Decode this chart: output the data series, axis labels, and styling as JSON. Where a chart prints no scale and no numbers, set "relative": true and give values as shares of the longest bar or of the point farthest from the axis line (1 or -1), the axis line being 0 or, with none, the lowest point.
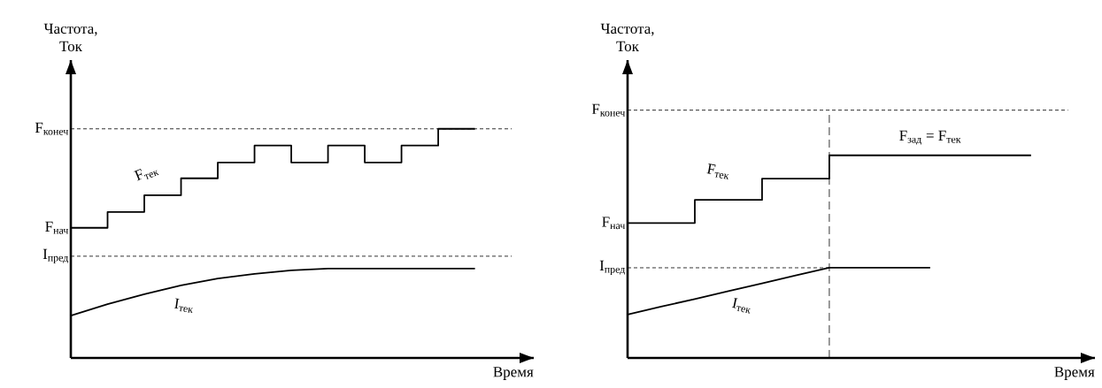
{
  "chart_data": [
    {
      "type": "line",
      "ylabel": "Частота, Ток",
      "xlabel": "Время",
      "relative": true,
      "categories": [
        null,
        null,
        null,
        null,
        null,
        null,
        null,
        null,
        null,
        null,
        null,
        null
      ],
      "series": [
        {
          "name": "F$_{тек}$",
          "type": "step",
          "color": "#000000",
          "values": [
            0.568,
            0.637,
            0.71,
            0.784,
            0.853,
            0.927,
            0.853,
            0.927,
            0.853,
            0.927,
            1,
            1
          ]
        },
        {
          "name": "I$_{тек}$",
          "type": "line",
          "color": "#000000",
          "values": [
            0.185,
            0.235,
            0.278,
            0.317,
            0.347,
            0.367,
            0.382,
            0.39,
            0.39,
            0.39,
            0.39,
            0.39
          ]
        }
      ],
      "ref_lines": [
        {
          "axis": "y",
          "value": 1,
          "label": "F$_{конеч}$",
          "line_style": "dashed"
        },
        {
          "axis": "y",
          "value": 0.444,
          "label": "I$_{пред}$",
          "line_style": "dashed"
        }
      ],
      "annotations": [
        "F$_{нач}$"
      ]
    },
    {
      "type": "line",
      "ylabel": "Частота, Ток",
      "xlabel": "Время",
      "relative": true,
      "categories": [
        null,
        null,
        null,
        null,
        null,
        null,
        null,
        null,
        null,
        null,
        null,
        null,
        null
      ],
      "series": [
        {
          "name": "F$_{тек}$",
          "type": "step",
          "color": "#000000",
          "values": [
            0.666,
            0.666,
            0.78,
            0.78,
            0.885,
            0.885,
            1,
            1,
            1,
            1,
            1,
            1,
            1
          ]
        },
        {
          "name": "I$_{тек}$",
          "type": "line",
          "color": "#000000",
          "values": [
            0.214,
            0.253,
            0.291,
            0.33,
            0.368,
            0.407,
            0.445,
            0.445,
            0.445,
            0.445,
            null,
            null,
            null
          ]
        }
      ],
      "ref_lines": [
        {
          "axis": "y",
          "value": 1.223,
          "label": "F$_{конеч}$",
          "line_style": "dashed"
        },
        {
          "axis": "y",
          "value": 0.445,
          "label": "I$_{пред}$",
          "line_style": "dashed"
        }
      ],
      "annotations": [
        "F$_{нач}$",
        "F$_{зад}$ = F$_{тек}$"
      ]
    }
  ]
}
